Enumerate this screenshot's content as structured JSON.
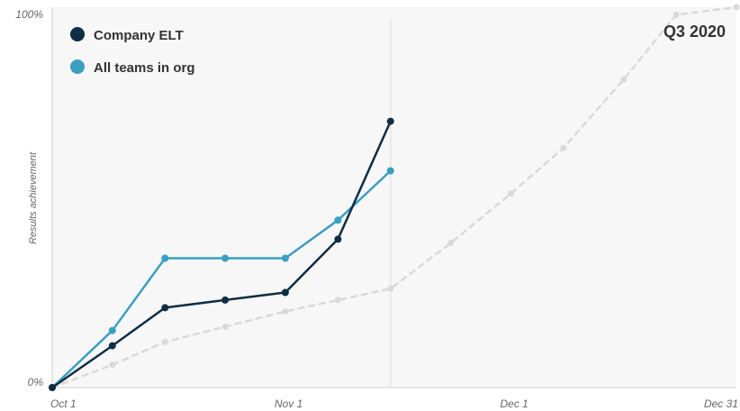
{
  "chart_data": {
    "type": "line",
    "title": "",
    "subtitle": "",
    "period_label": "Q3 2020",
    "xlabel": "",
    "ylabel": "Results achievement",
    "x_axis": {
      "type": "date",
      "range": [
        "2020-10-01",
        "2020-12-31"
      ],
      "ticks": [
        {
          "date": "2020-10-01",
          "label": "Oct 1"
        },
        {
          "date": "2020-11-01",
          "label": "Nov 1"
        },
        {
          "date": "2020-12-01",
          "label": "Dec 1"
        },
        {
          "date": "2020-12-31",
          "label": "Dec 31"
        }
      ]
    },
    "y_axis": {
      "range": [
        0,
        100
      ],
      "ticks": [
        {
          "value": 0,
          "label": "0%"
        },
        {
          "value": 100,
          "label": "100%"
        }
      ]
    },
    "grid": false,
    "legend_placement": "top-left",
    "current_date": "2020-11-15",
    "series": [
      {
        "name": "Company ELT",
        "color": "#0f2d44",
        "style": "solid",
        "points": [
          {
            "x": "2020-10-01",
            "y": 0
          },
          {
            "x": "2020-10-09",
            "y": 11
          },
          {
            "x": "2020-10-16",
            "y": 21
          },
          {
            "x": "2020-10-24",
            "y": 23
          },
          {
            "x": "2020-11-01",
            "y": 25
          },
          {
            "x": "2020-11-08",
            "y": 39
          },
          {
            "x": "2020-11-15",
            "y": 70
          }
        ]
      },
      {
        "name": "All teams in org",
        "color": "#3a9fc0",
        "style": "solid",
        "points": [
          {
            "x": "2020-10-01",
            "y": 0
          },
          {
            "x": "2020-10-09",
            "y": 15
          },
          {
            "x": "2020-10-16",
            "y": 34
          },
          {
            "x": "2020-10-24",
            "y": 34
          },
          {
            "x": "2020-11-01",
            "y": 34
          },
          {
            "x": "2020-11-08",
            "y": 44
          },
          {
            "x": "2020-11-15",
            "y": 57
          }
        ]
      },
      {
        "name": "",
        "color": "#d9d9d9",
        "style": "dashed",
        "points": [
          {
            "x": "2020-10-01",
            "y": 0
          },
          {
            "x": "2020-10-09",
            "y": 6
          },
          {
            "x": "2020-10-16",
            "y": 12
          },
          {
            "x": "2020-10-24",
            "y": 16
          },
          {
            "x": "2020-11-01",
            "y": 20
          },
          {
            "x": "2020-11-08",
            "y": 23
          },
          {
            "x": "2020-11-15",
            "y": 26
          },
          {
            "x": "2020-11-23",
            "y": 38
          },
          {
            "x": "2020-12-01",
            "y": 51
          },
          {
            "x": "2020-12-08",
            "y": 63
          },
          {
            "x": "2020-12-16",
            "y": 81
          },
          {
            "x": "2020-12-23",
            "y": 98
          },
          {
            "x": "2020-12-31",
            "y": 100
          }
        ]
      }
    ]
  }
}
